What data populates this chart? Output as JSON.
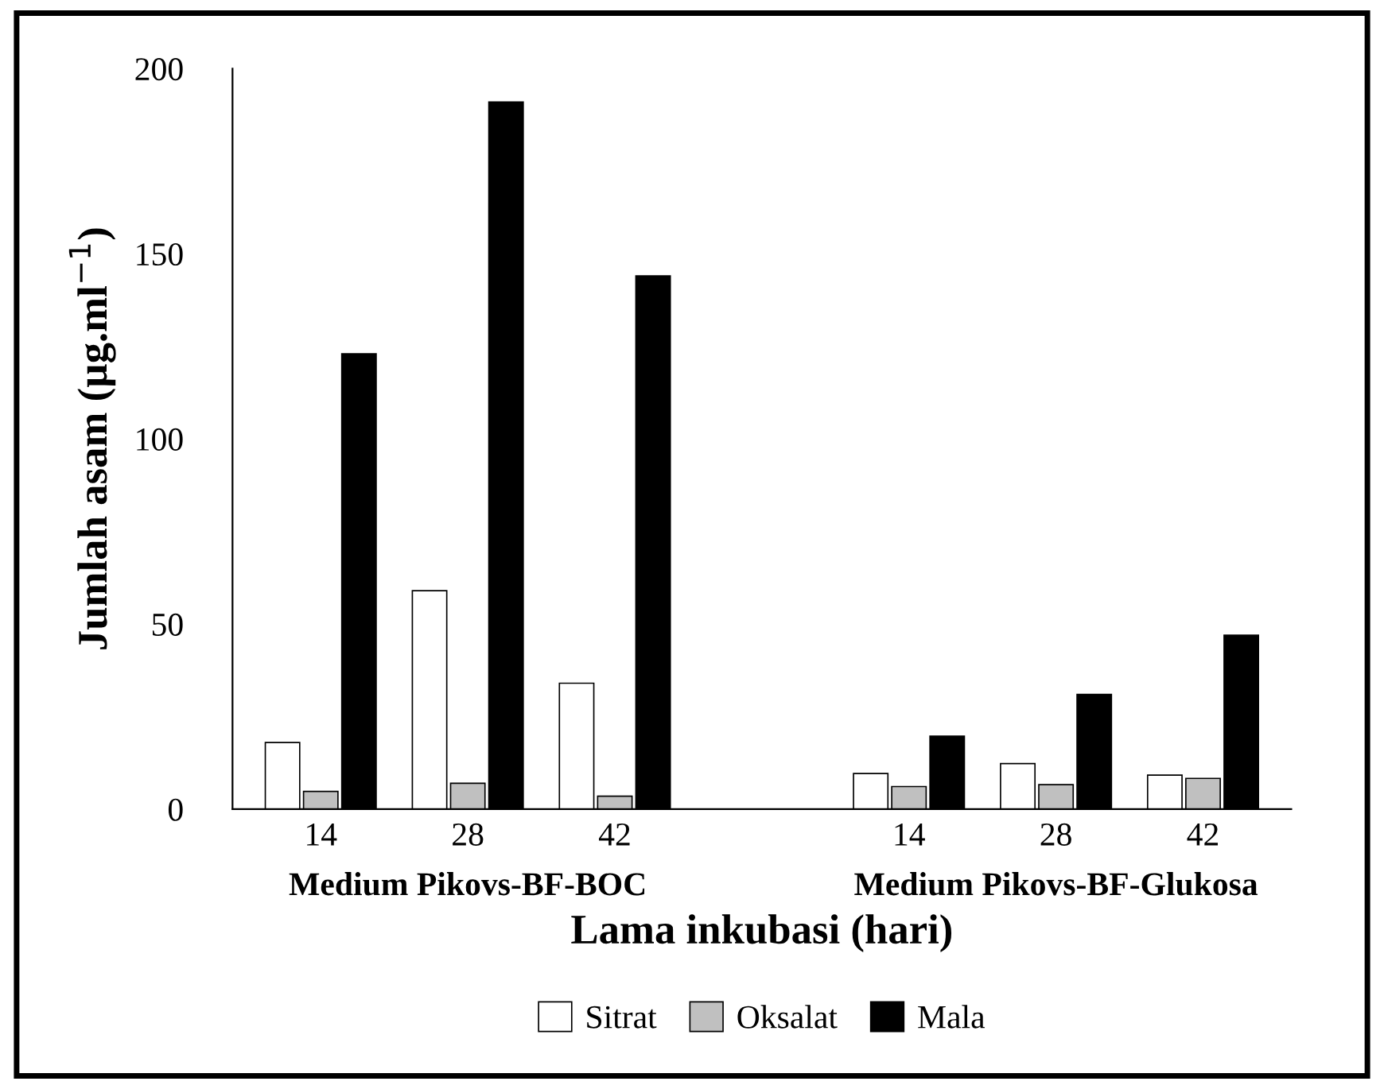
{
  "chart_data": {
    "type": "bar",
    "xlabel": "Lama inkubasi (hari)",
    "ylabel": "Jumlah asam (µg.ml$^{−1}$)",
    "categories": [
      "14",
      "28",
      "42",
      null,
      "14",
      "28",
      "42"
    ],
    "series": [
      {
        "name": "Sitrat",
        "color": "#ffffff",
        "values": [
          18,
          59,
          34,
          null,
          9.6,
          12.3,
          9.2
        ]
      },
      {
        "name": "Oksalat",
        "color": "#c0c0c0",
        "values": [
          4.8,
          7,
          3.5,
          null,
          6.1,
          6.6,
          8.3
        ]
      },
      {
        "name": "Mala",
        "color": "#000000",
        "values": [
          123,
          191,
          144,
          null,
          19.7,
          31,
          47
        ]
      }
    ],
    "annotations": [
      "Medium Pikovs-BF-BOC",
      "Medium Pikovs-BF-Glukosa"
    ],
    "ylim": [
      0,
      200
    ],
    "yticks": [
      0,
      50,
      100,
      150,
      200
    ],
    "grid": false,
    "legend": "bottom"
  }
}
